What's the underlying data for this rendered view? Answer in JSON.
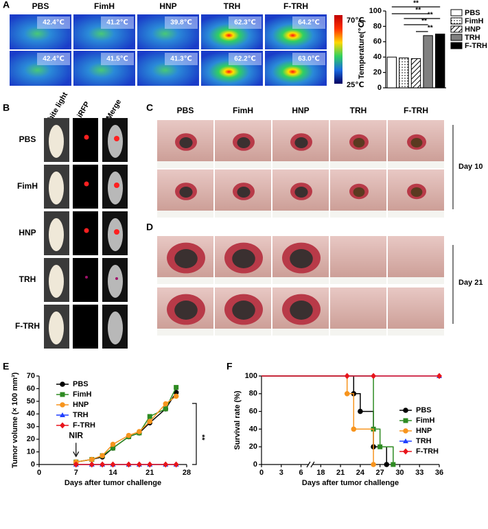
{
  "panels": {
    "a": "A",
    "b": "B",
    "c": "C",
    "d": "D",
    "e": "E",
    "f": "F"
  },
  "thermal": {
    "columns": [
      "PBS",
      "FimH",
      "HNP",
      "TRH",
      "F-TRH"
    ],
    "temps": [
      [
        "42.4℃",
        "41.2℃",
        "39.8℃",
        "62.3℃",
        "64.2℃"
      ],
      [
        "42.4℃",
        "41.5℃",
        "41.3℃",
        "62.2℃",
        "63.0℃"
      ]
    ],
    "scale_max": "70℃",
    "scale_min": "25℃"
  },
  "imaging": {
    "headers": [
      "White light",
      "iRFP",
      "Merge"
    ],
    "rows": [
      "PBS",
      "FimH",
      "HNP",
      "TRH",
      "F-TRH"
    ]
  },
  "wound_day10": {
    "columns": [
      "PBS",
      "FimH",
      "HNP",
      "TRH",
      "F-TRH"
    ],
    "day": "Day 10"
  },
  "wound_day21": {
    "day": "Day 21"
  },
  "chart_data": [
    {
      "type": "bar",
      "ylabel": "Temperature(℃)",
      "categories": [
        "PBS",
        "FimH",
        "HNP",
        "TRH",
        "F-TRH"
      ],
      "values": [
        40,
        39,
        38,
        68,
        70
      ],
      "fills": [
        "#ffffff",
        "dots",
        "hatch",
        "#808080",
        "#000000"
      ],
      "ylim": [
        0,
        100
      ],
      "yticks": [
        0,
        20,
        40,
        60,
        80,
        100
      ],
      "legend": "right",
      "significance": [
        "**",
        "**",
        "**",
        "**",
        "**"
      ]
    },
    {
      "type": "line",
      "xlabel": "Days after tumor challenge",
      "ylabel": "Tumor volume (× 100 mm³)",
      "x": [
        7,
        10,
        12,
        14,
        17,
        19,
        21,
        24,
        26
      ],
      "series": [
        {
          "name": "PBS",
          "color": "#000000",
          "marker": "circle",
          "values": [
            2,
            4,
            6,
            13,
            22,
            25,
            33,
            44,
            57
          ]
        },
        {
          "name": "FimH",
          "color": "#2e8b22",
          "marker": "square",
          "values": [
            2,
            4,
            7,
            13,
            22,
            25,
            38,
            44,
            61
          ]
        },
        {
          "name": "HNP",
          "color": "#f7941d",
          "marker": "circle",
          "values": [
            2,
            4,
            7,
            16,
            23,
            26,
            34,
            48,
            54
          ]
        },
        {
          "name": "TRH",
          "color": "#1f3fff",
          "marker": "triangle",
          "values": [
            0,
            0,
            0,
            0,
            0,
            0,
            0,
            0,
            0
          ]
        },
        {
          "name": "F-TRH",
          "color": "#e8141b",
          "marker": "diamond",
          "values": [
            0,
            0,
            0,
            0,
            0,
            0,
            0,
            0,
            0
          ]
        }
      ],
      "xlim": [
        0,
        28
      ],
      "xticks": [
        0,
        7,
        14,
        21,
        28
      ],
      "ylim": [
        0,
        70
      ],
      "yticks": [
        0,
        10,
        20,
        30,
        40,
        50,
        60,
        70
      ],
      "arrow_label": "NIR",
      "significance": "**",
      "legend": "upper left"
    },
    {
      "type": "step",
      "xlabel": "Days after tumor challenge",
      "ylabel": "Survival rate (%)",
      "series": [
        {
          "name": "PBS",
          "color": "#000000",
          "marker": "circle",
          "x": [
            0,
            23,
            24,
            26,
            28
          ],
          "values": [
            100,
            80,
            60,
            20,
            0
          ]
        },
        {
          "name": "FimH",
          "color": "#2e8b22",
          "marker": "square",
          "x": [
            0,
            26,
            27,
            29
          ],
          "values": [
            100,
            40,
            20,
            0
          ]
        },
        {
          "name": "HNP",
          "color": "#f7941d",
          "marker": "circle",
          "x": [
            0,
            22,
            23,
            26
          ],
          "values": [
            100,
            80,
            40,
            0
          ]
        },
        {
          "name": "TRH",
          "color": "#1f3fff",
          "marker": "triangle",
          "x": [
            0,
            36
          ],
          "values": [
            100,
            100
          ]
        },
        {
          "name": "F-TRH",
          "color": "#e8141b",
          "marker": "diamond",
          "x": [
            0,
            22,
            26,
            36
          ],
          "values": [
            100,
            100,
            100,
            100
          ]
        }
      ],
      "xlim": [
        0,
        36
      ],
      "x_break": [
        6,
        18
      ],
      "xticks": [
        0,
        3,
        6,
        18,
        21,
        24,
        27,
        30,
        33,
        36
      ],
      "ylim": [
        0,
        100
      ],
      "yticks": [
        0,
        20,
        40,
        60,
        80,
        100
      ],
      "legend": "right"
    }
  ]
}
